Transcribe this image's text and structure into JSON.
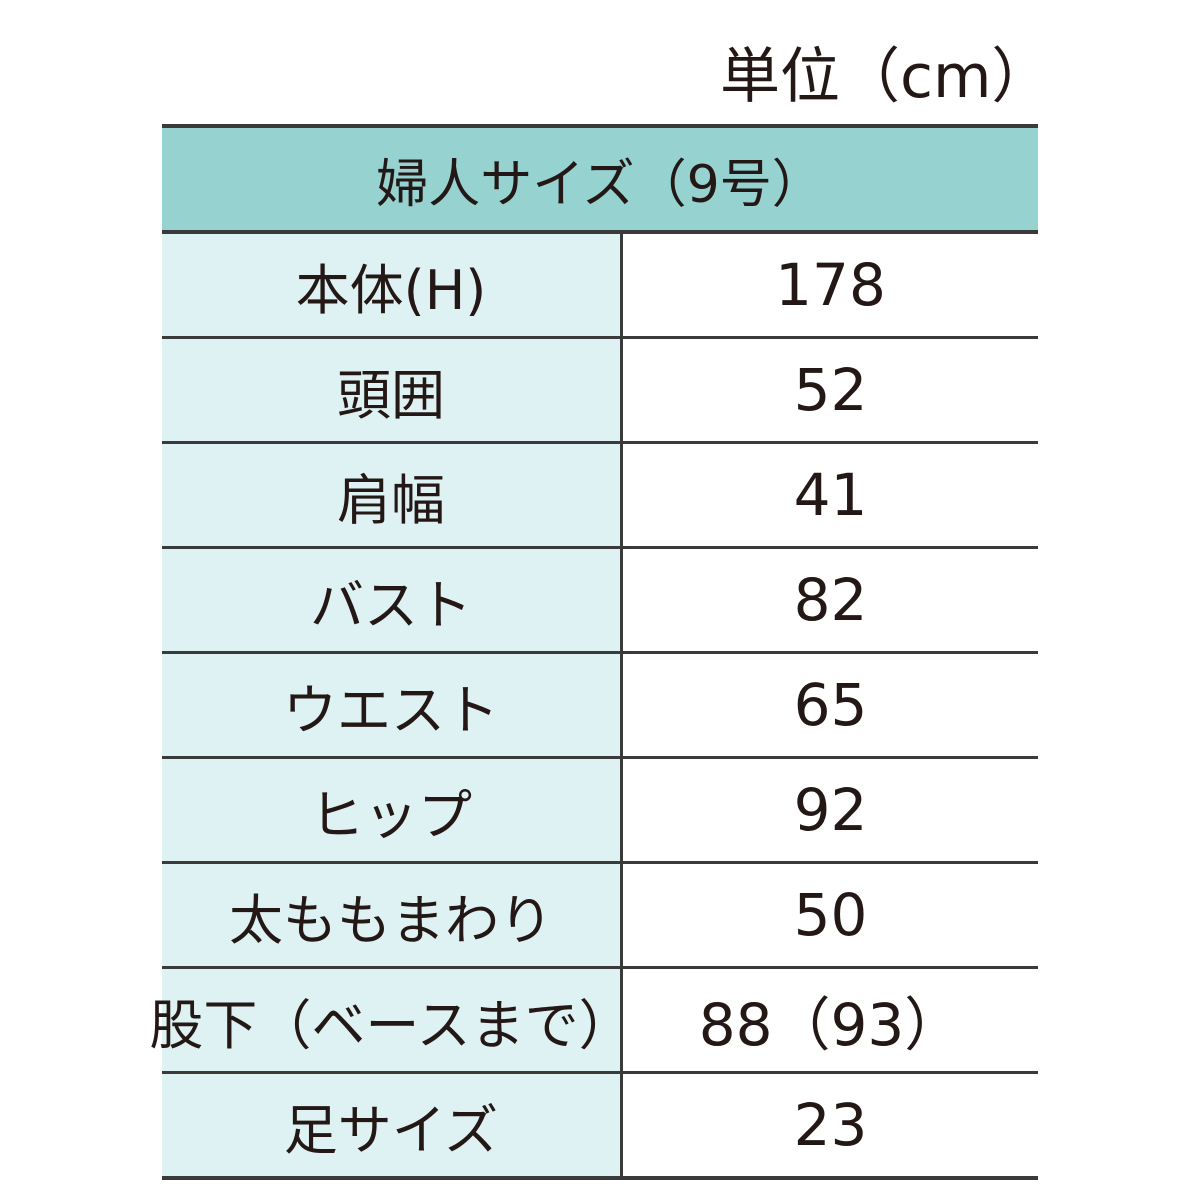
{
  "unit": "単位（cm）",
  "table": {
    "header": "婦人サイズ（9号）",
    "rows": [
      [
        "本体(H)",
        "178"
      ],
      [
        "頭囲",
        "52"
      ],
      [
        "肩幅",
        "41"
      ],
      [
        "バスト",
        "82"
      ],
      [
        "ウエスト",
        "65"
      ],
      [
        "ヒップ",
        "92"
      ],
      [
        "太ももまわり",
        "50"
      ],
      [
        "股下（ベースまで）",
        "88（93）"
      ],
      [
        "足サイズ",
        "23"
      ]
    ]
  }
}
